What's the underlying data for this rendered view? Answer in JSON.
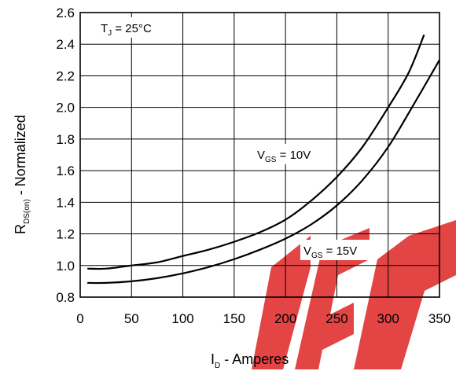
{
  "chart_data": {
    "type": "line",
    "xlabel": "I",
    "xlabel_sub": "D",
    "xlabel_suffix": " - Amperes",
    "ylabel": "R",
    "ylabel_sub": "DS(on)",
    "ylabel_suffix": " - Normalized",
    "xlim": [
      0,
      350
    ],
    "ylim": [
      0.8,
      2.6
    ],
    "x_ticks": [
      0,
      50,
      100,
      150,
      200,
      250,
      300,
      350
    ],
    "y_ticks": [
      0.8,
      1.0,
      1.2,
      1.4,
      1.6,
      1.8,
      2.0,
      2.2,
      2.4,
      2.6
    ],
    "y_tick_labels": [
      "0.8",
      "1.0",
      "1.2",
      "1.4",
      "1.6",
      "1.8",
      "2.0",
      "2.2",
      "2.4",
      "2.6"
    ],
    "grid": true,
    "annotation_temp": {
      "main": "T",
      "sub": "J",
      "rest": " = 25°C"
    },
    "series": [
      {
        "label_main": "V",
        "label_sub": "GS",
        "label_rest": " = 10V",
        "x": [
          7,
          25,
          50,
          75,
          100,
          125,
          150,
          175,
          200,
          225,
          250,
          275,
          300,
          320,
          335
        ],
        "y": [
          0.98,
          0.98,
          1.0,
          1.02,
          1.06,
          1.1,
          1.15,
          1.21,
          1.29,
          1.41,
          1.56,
          1.75,
          2.0,
          2.22,
          2.46
        ]
      },
      {
        "label_main": "V",
        "label_sub": "GS",
        "label_rest": " = 15V",
        "x": [
          7,
          25,
          50,
          75,
          100,
          125,
          150,
          175,
          200,
          225,
          250,
          275,
          300,
          325,
          350
        ],
        "y": [
          0.89,
          0.89,
          0.9,
          0.92,
          0.95,
          0.99,
          1.04,
          1.1,
          1.17,
          1.26,
          1.38,
          1.54,
          1.75,
          2.02,
          2.3
        ]
      }
    ]
  },
  "watermark": {
    "color": "#e0292d"
  }
}
